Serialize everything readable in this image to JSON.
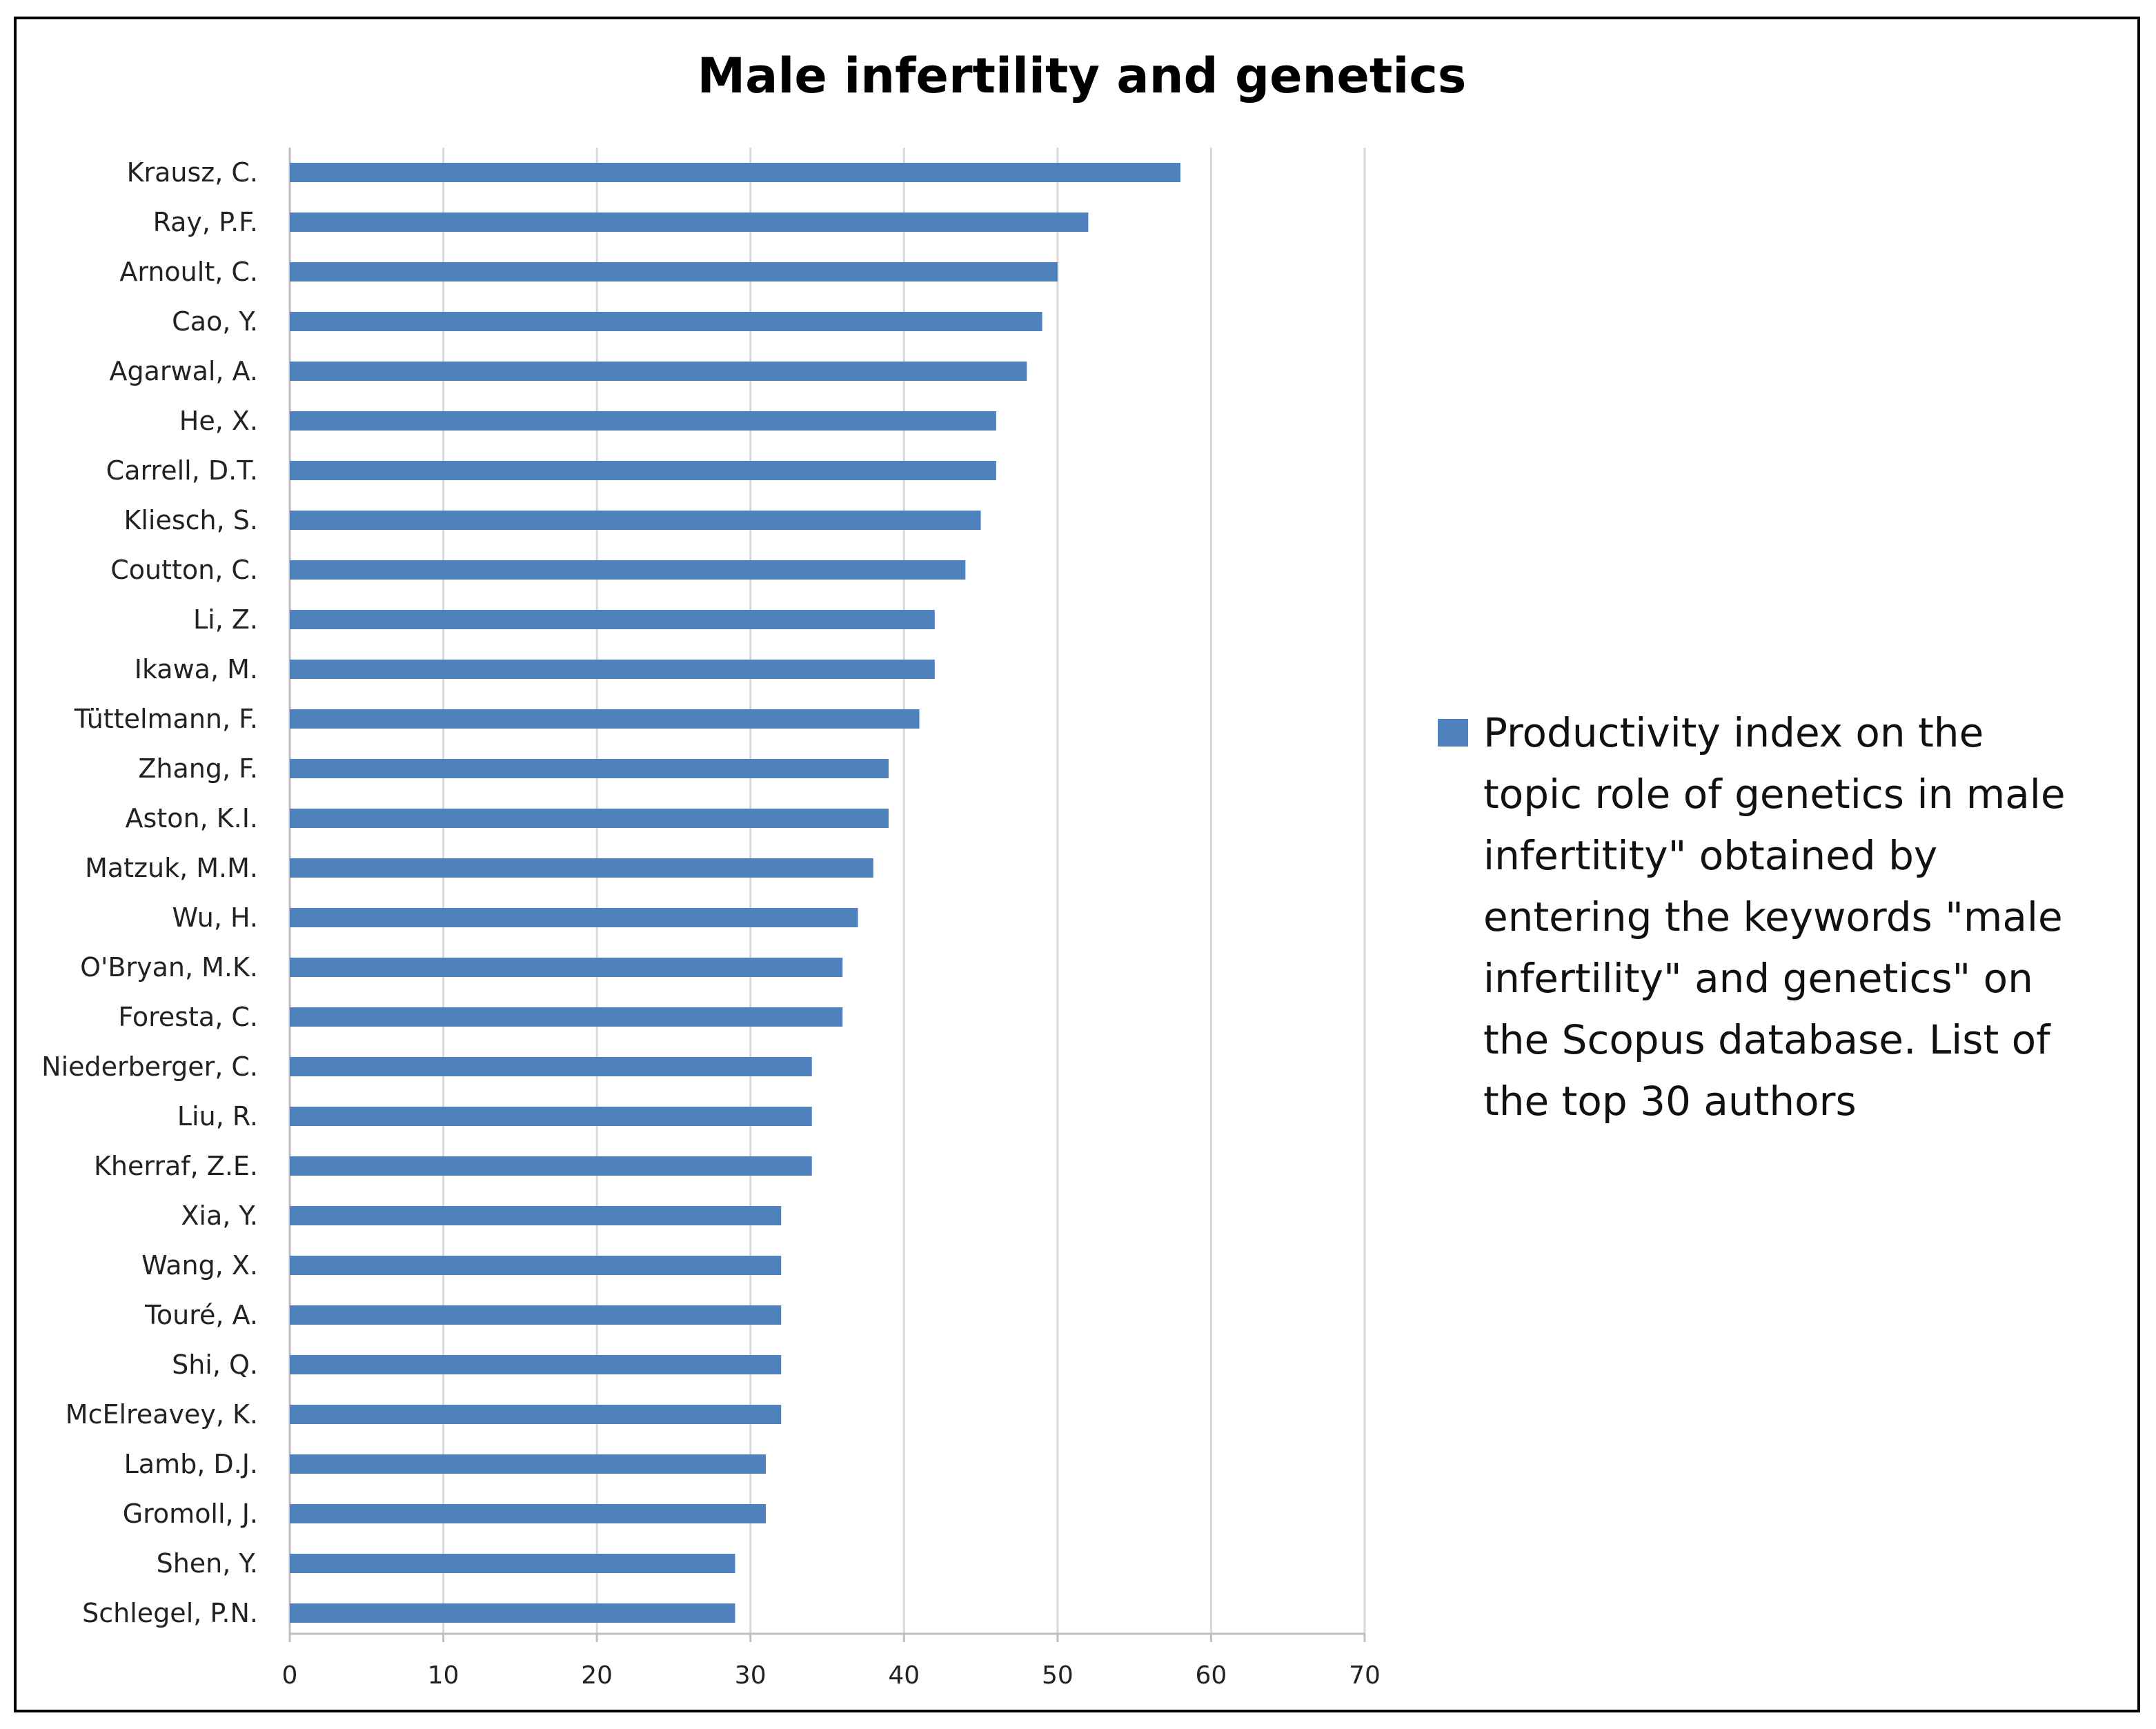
{
  "chart_data": {
    "type": "bar",
    "orientation": "horizontal",
    "title": "Male infertility and genetics",
    "xlabel": "",
    "ylabel": "",
    "xlim": [
      0,
      70
    ],
    "x_ticks": [
      0,
      10,
      20,
      30,
      40,
      50,
      60,
      70
    ],
    "grid": true,
    "legend_position": "right",
    "bar_color": "#4f81bd",
    "categories": [
      "Krausz, C.",
      "Ray, P.F.",
      "Arnoult, C.",
      "Cao, Y.",
      "Agarwal, A.",
      "He, X.",
      "Carrell, D.T.",
      "Kliesch, S.",
      "Coutton, C.",
      "Li, Z.",
      "Ikawa, M.",
      "Tüttelmann, F.",
      "Zhang, F.",
      "Aston, K.I.",
      "Matzuk, M.M.",
      "Wu, H.",
      "O'Bryan, M.K.",
      "Foresta, C.",
      "Niederberger, C.",
      "Liu, R.",
      "Kherraf, Z.E.",
      "Xia, Y.",
      "Wang, X.",
      "Touré, A.",
      "Shi, Q.",
      "McElreavey, K.",
      "Lamb, D.J.",
      "Gromoll, J.",
      "Shen, Y.",
      "Schlegel, P.N."
    ],
    "series": [
      {
        "name": "Productivity index on the topic role of genetics in male infertitity\" obtained by entering the keywords \"male infertility\" and genetics\" on the Scopus database. List of the top 30 authors",
        "values": [
          58,
          52,
          50,
          49,
          48,
          46,
          46,
          45,
          44,
          42,
          42,
          41,
          39,
          39,
          38,
          37,
          36,
          36,
          34,
          34,
          34,
          32,
          32,
          32,
          32,
          32,
          31,
          31,
          29,
          29
        ]
      }
    ],
    "legend_lines": [
      "Productivity index on the",
      "topic role of genetics in male",
      "infertitity\" obtained by",
      "entering the keywords \"male",
      "infertility\" and genetics\" on",
      "the Scopus database. List of",
      "the top 30 authors"
    ]
  }
}
